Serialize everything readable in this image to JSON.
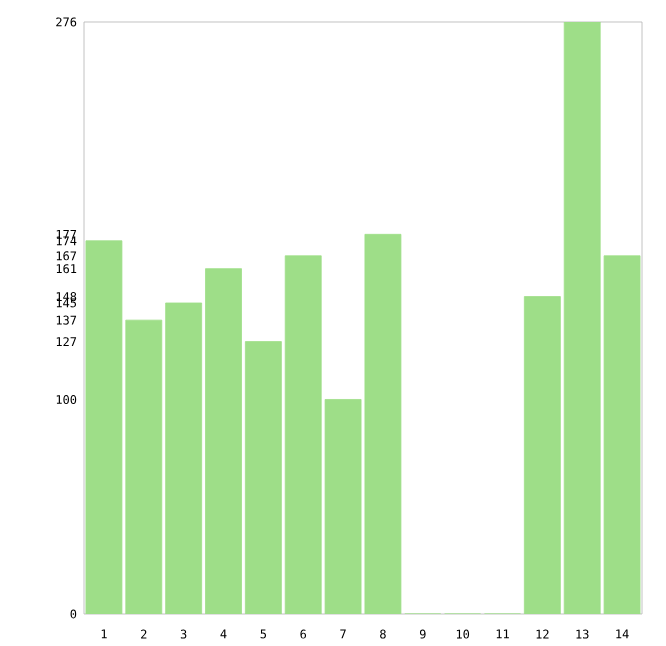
{
  "chart_data": {
    "type": "bar",
    "categories": [
      "1",
      "2",
      "3",
      "4",
      "5",
      "6",
      "7",
      "8",
      "9",
      "10",
      "11",
      "12",
      "13",
      "14"
    ],
    "values": [
      174,
      137,
      145,
      161,
      127,
      167,
      100,
      177,
      0,
      0,
      0,
      148,
      276,
      167
    ],
    "color": "#9ede88",
    "ylim": [
      0,
      276
    ],
    "yticks": [
      0,
      100,
      127,
      137,
      145,
      148,
      161,
      167,
      174,
      177,
      276
    ],
    "grid": false
  }
}
